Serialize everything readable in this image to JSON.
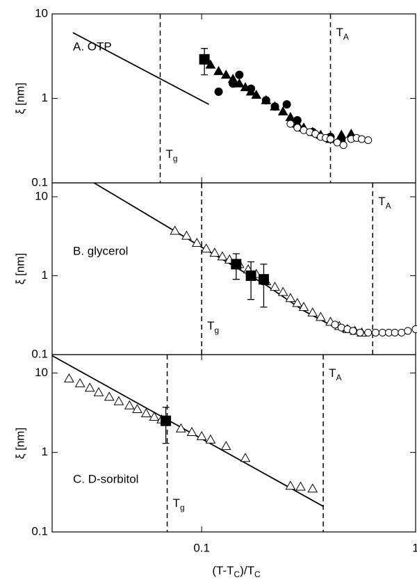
{
  "chart_data": [
    {
      "type": "scatter",
      "panel_label": "A. OTP",
      "ylabel": "ξ [nm]",
      "xlim": [
        0.02,
        1
      ],
      "ylim": [
        0.1,
        10
      ],
      "xticks": [
        0.1,
        1
      ],
      "yticks": [
        0.1,
        1,
        10
      ],
      "log_x": true,
      "log_y": true,
      "vlines": [
        {
          "label": "T",
          "subscript": "g",
          "value": 0.064
        },
        {
          "label": "T",
          "subscript": "A",
          "value": 0.4
        }
      ],
      "series": [
        {
          "style": "line",
          "color": "#000",
          "x": [
            0.025,
            0.108
          ],
          "values": [
            6.0,
            0.85
          ]
        },
        {
          "marker": "triangle",
          "filled": true,
          "color": "#000",
          "x": [
            0.105,
            0.11,
            0.12,
            0.13,
            0.14,
            0.15,
            0.16,
            0.17,
            0.18,
            0.2,
            0.22,
            0.24,
            0.26,
            0.28,
            0.3,
            0.33,
            0.36,
            0.4,
            0.45,
            0.5
          ],
          "values": [
            2.9,
            2.5,
            2.1,
            1.9,
            1.7,
            1.5,
            1.35,
            1.2,
            1.1,
            0.95,
            0.8,
            0.7,
            0.6,
            0.5,
            0.45,
            0.4,
            0.37,
            0.33,
            0.37,
            0.38
          ]
        },
        {
          "marker": "circle",
          "filled": true,
          "color": "#000",
          "x": [
            0.12,
            0.14,
            0.15,
            0.17,
            0.2,
            0.22,
            0.25,
            0.28,
            0.33,
            0.4,
            0.45
          ],
          "values": [
            1.2,
            1.5,
            1.9,
            1.3,
            0.95,
            0.8,
            0.85,
            0.55,
            0.4,
            0.35,
            0.32
          ]
        },
        {
          "marker": "circle",
          "filled": false,
          "color": "#000",
          "x": [
            0.26,
            0.28,
            0.3,
            0.32,
            0.34,
            0.36,
            0.38,
            0.4,
            0.43,
            0.46,
            0.5,
            0.53,
            0.56,
            0.6
          ],
          "values": [
            0.5,
            0.45,
            0.42,
            0.4,
            0.38,
            0.35,
            0.34,
            0.33,
            0.3,
            0.28,
            0.33,
            0.34,
            0.33,
            0.32
          ]
        },
        {
          "marker": "square",
          "filled": true,
          "color": "#000",
          "x": [
            0.103
          ],
          "values": [
            2.9
          ],
          "errors": [
            1.0
          ]
        }
      ]
    },
    {
      "type": "scatter",
      "panel_label": "B. glycerol",
      "ylabel": "ξ [nm]",
      "xlim": [
        0.02,
        1
      ],
      "ylim": [
        0.1,
        15
      ],
      "xticks": [
        0.1,
        1
      ],
      "yticks": [
        0.1,
        1,
        10
      ],
      "log_x": true,
      "log_y": true,
      "vlines": [
        {
          "label": "T",
          "subscript": "g",
          "value": 0.1
        },
        {
          "label": "T",
          "subscript": "A",
          "value": 0.63
        }
      ],
      "series": [
        {
          "style": "line",
          "color": "#000",
          "x": [
            0.0314,
            0.1,
            0.2,
            0.3,
            0.45,
            0.6
          ],
          "values": [
            15,
            2.3,
            0.76,
            0.36,
            0.2,
            0.18
          ]
        },
        {
          "marker": "triangle",
          "filled": false,
          "color": "#000",
          "x": [
            0.075,
            0.085,
            0.095,
            0.105,
            0.115,
            0.125,
            0.135,
            0.15,
            0.165,
            0.18,
            0.2,
            0.22,
            0.24,
            0.26,
            0.28,
            0.3,
            0.33,
            0.36,
            0.4,
            0.44,
            0.48,
            0.52,
            0.56
          ],
          "values": [
            3.7,
            3.2,
            2.6,
            2.2,
            1.95,
            1.75,
            1.6,
            1.4,
            1.2,
            1.05,
            0.85,
            0.72,
            0.62,
            0.52,
            0.45,
            0.4,
            0.34,
            0.3,
            0.26,
            0.23,
            0.21,
            0.2,
            0.19
          ]
        },
        {
          "marker": "circle",
          "filled": false,
          "color": "#000",
          "x": [
            0.42,
            0.45,
            0.48,
            0.51,
            0.55,
            0.6,
            0.65,
            0.7,
            0.75,
            0.8,
            0.86,
            0.92,
            1.0
          ],
          "values": [
            0.24,
            0.22,
            0.21,
            0.2,
            0.19,
            0.19,
            0.19,
            0.19,
            0.19,
            0.19,
            0.19,
            0.2,
            0.21
          ]
        },
        {
          "marker": "square",
          "filled": true,
          "color": "#000",
          "x": [
            0.145,
            0.17,
            0.195
          ],
          "values": [
            1.4,
            1.0,
            0.9
          ],
          "errors": [
            0.5,
            0.5,
            0.5
          ]
        }
      ]
    },
    {
      "type": "scatter",
      "panel_label": "C. D-sorbitol",
      "ylabel": "ξ [nm]",
      "xlabel": [
        "(T-T",
        "C",
        ")/T",
        "C"
      ],
      "xlim": [
        0.02,
        1
      ],
      "ylim": [
        0.1,
        17
      ],
      "xticks": [
        0.1,
        1
      ],
      "yticks": [
        0.1,
        1,
        10
      ],
      "log_x": true,
      "log_y": true,
      "vlines": [
        {
          "label": "T",
          "subscript": "g",
          "value": 0.069
        },
        {
          "label": "T",
          "subscript": "A",
          "value": 0.37
        }
      ],
      "series": [
        {
          "style": "line",
          "color": "#000",
          "x": [
            0.02,
            0.37
          ],
          "values": [
            16.5,
            0.21
          ]
        },
        {
          "marker": "triangle",
          "filled": false,
          "color": "#000",
          "x": [
            0.024,
            0.027,
            0.03,
            0.033,
            0.037,
            0.041,
            0.046,
            0.05,
            0.055,
            0.06,
            0.065,
            0.08,
            0.09,
            0.1,
            0.11,
            0.13,
            0.16,
            0.26,
            0.29,
            0.33
          ],
          "values": [
            8.5,
            7.4,
            6.5,
            5.7,
            5.0,
            4.4,
            3.9,
            3.5,
            3.1,
            2.8,
            2.6,
            2.0,
            1.8,
            1.6,
            1.45,
            1.2,
            0.85,
            0.38,
            0.37,
            0.35
          ]
        },
        {
          "marker": "square",
          "filled": true,
          "color": "#000",
          "x": [
            0.068
          ],
          "values": [
            2.5
          ],
          "errors": [
            1.2
          ]
        }
      ]
    }
  ]
}
